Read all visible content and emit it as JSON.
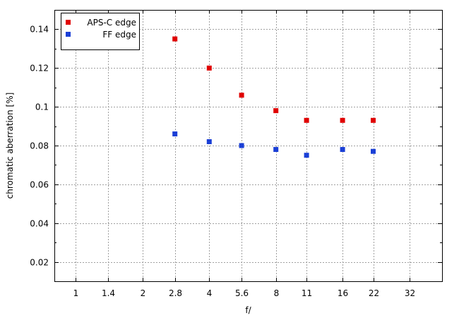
{
  "chart_data": {
    "type": "scatter",
    "title": "",
    "xlabel": "f/",
    "ylabel": "chromatic aberration [%]",
    "x_scale": "log2",
    "x_ticks": [
      1,
      1.4,
      2,
      2.8,
      4,
      5.6,
      8,
      11,
      16,
      22,
      32
    ],
    "x_tick_labels": [
      "1",
      "1.4",
      "2",
      "2.8",
      "4",
      "5.6",
      "8",
      "11",
      "16",
      "22",
      "32"
    ],
    "xlim": [
      0.8,
      45
    ],
    "y_ticks": [
      0.02,
      0.04,
      0.06,
      0.08,
      0.1,
      0.12,
      0.14
    ],
    "y_tick_labels": [
      "0.02",
      "0.04",
      "0.06",
      "0.08",
      "0.1",
      "0.12",
      "0.14"
    ],
    "ylim": [
      0.01,
      0.15
    ],
    "grid": true,
    "legend_position": "top-left",
    "series": [
      {
        "name": "APS-C edge",
        "color": "#e00000",
        "x": [
          2.8,
          4,
          5.6,
          8,
          11,
          16,
          22
        ],
        "y": [
          0.135,
          0.12,
          0.106,
          0.098,
          0.093,
          0.093,
          0.093
        ]
      },
      {
        "name": "FF edge",
        "color": "#1a3fd6",
        "x": [
          2.8,
          4,
          5.6,
          8,
          11,
          16,
          22
        ],
        "y": [
          0.086,
          0.082,
          0.08,
          0.078,
          0.075,
          0.078,
          0.077
        ]
      }
    ]
  }
}
